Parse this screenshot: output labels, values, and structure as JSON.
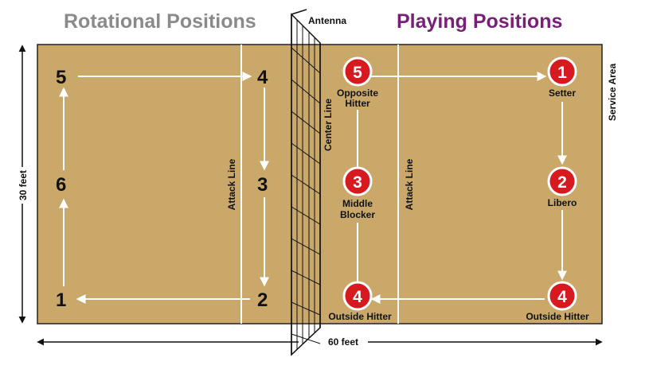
{
  "titles": {
    "rotational": "Rotational Positions",
    "playing": "Playing Positions"
  },
  "labels": {
    "antenna": "Antenna",
    "center_line": "Center Line",
    "attack_line_left": "Attack Line",
    "attack_line_right": "Attack Line",
    "service_area": "Service Area",
    "width": "30 feet",
    "length": "60 feet"
  },
  "rotational_numbers": {
    "p5": "5",
    "p4": "4",
    "p6": "6",
    "p3": "3",
    "p1": "1",
    "p2": "2"
  },
  "playing_positions": {
    "pos5": {
      "number": "5",
      "role_line1": "Opposite",
      "role_line2": "Hitter"
    },
    "pos1": {
      "number": "1",
      "role_line1": "Setter"
    },
    "pos3": {
      "number": "3",
      "role_line1": "Middle",
      "role_line2": "Blocker"
    },
    "pos2": {
      "number": "2",
      "role_line1": "Libero"
    },
    "pos4_left": {
      "number": "4",
      "role_line1": "Outside Hitter"
    },
    "pos4_right": {
      "number": "4",
      "role_line1": "Outside Hitter"
    }
  },
  "colors": {
    "court": "#c9a869",
    "court_border": "#222222",
    "rotational_title": "#8a8a8a",
    "playing_title": "#7a1f78",
    "circle_fill": "#d71920",
    "lines": "#ffffff"
  }
}
